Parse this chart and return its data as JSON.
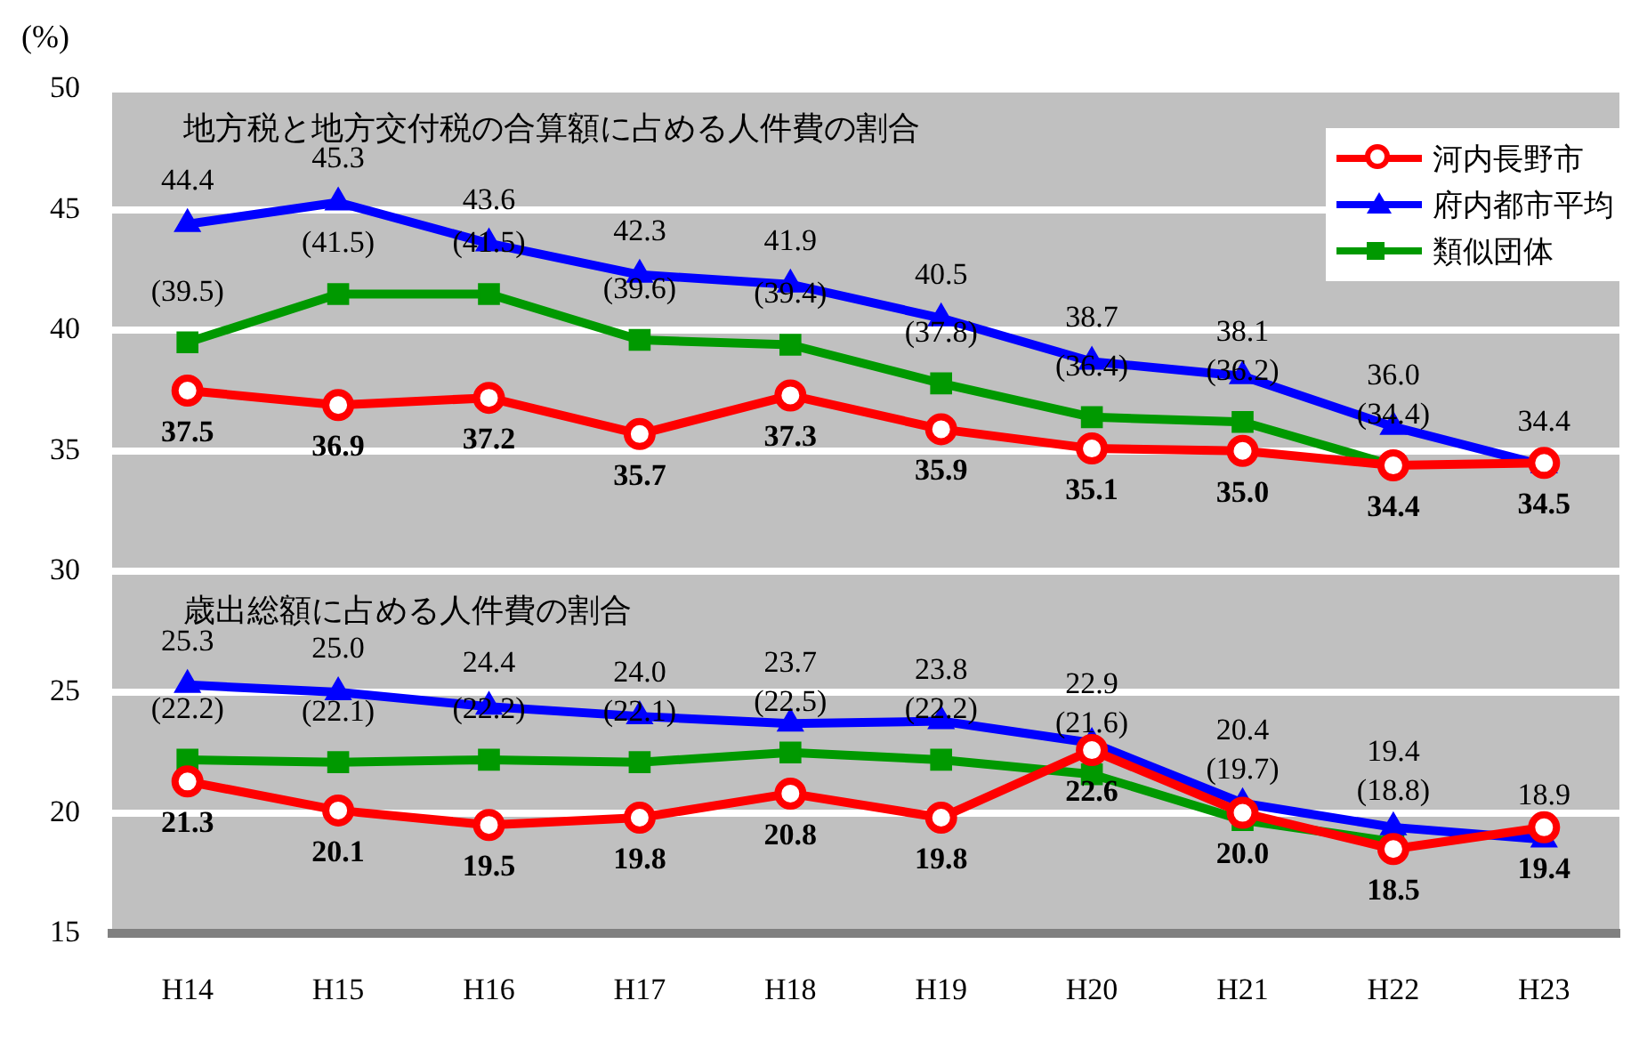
{
  "chart_data": {
    "type": "line",
    "ylabel": "(%)",
    "categories": [
      "H14",
      "H15",
      "H16",
      "H17",
      "H18",
      "H19",
      "H20",
      "H21",
      "H22",
      "H23"
    ],
    "ylim": [
      15,
      50
    ],
    "yticks": [
      15,
      20,
      25,
      30,
      35,
      40,
      45,
      50
    ],
    "grid": "y",
    "legend": "top right",
    "annotations": [
      "地方税と地方交付税の合算額に占める人件費の割合",
      "歳出総額に占める人件費の割合"
    ],
    "series": [
      {
        "name": "河内長野市",
        "color": "#ff0000",
        "marker": "circle",
        "values": [
          37.5,
          36.9,
          37.2,
          35.7,
          37.3,
          35.9,
          35.1,
          35.0,
          34.4,
          34.5
        ],
        "value_labels": [
          "37.5",
          "36.9",
          "37.2",
          "35.7",
          "37.3",
          "35.9",
          "35.1",
          "35.0",
          "34.4",
          "34.5"
        ]
      },
      {
        "name": "府内都市平均",
        "color": "#0000ff",
        "marker": "triangle",
        "values": [
          44.4,
          45.3,
          43.6,
          42.3,
          41.9,
          40.5,
          38.7,
          38.1,
          36.0,
          34.4
        ],
        "value_labels": [
          "44.4",
          "45.3",
          "43.6",
          "42.3",
          "41.9",
          "40.5",
          "38.7",
          "38.1",
          "36.0",
          "34.4"
        ]
      },
      {
        "name": "類似団体",
        "color": "#009900",
        "marker": "square",
        "values": [
          39.5,
          41.5,
          41.5,
          39.6,
          39.4,
          37.8,
          36.4,
          36.2,
          34.4,
          null
        ],
        "value_labels": [
          "(39.5)",
          "(41.5)",
          "(41.5)",
          "(39.6)",
          "(39.4)",
          "(37.8)",
          "(36.4)",
          "(36.2)",
          "(34.4)",
          null
        ]
      },
      {
        "color": "#ff0000",
        "marker": "circle",
        "values": [
          21.3,
          20.1,
          19.5,
          19.8,
          20.8,
          19.8,
          22.6,
          20.0,
          18.5,
          19.4
        ],
        "value_labels": [
          "21.3",
          "20.1",
          "19.5",
          "19.8",
          "20.8",
          "19.8",
          "22.6",
          "20.0",
          "18.5",
          "19.4"
        ]
      },
      {
        "color": "#0000ff",
        "marker": "triangle",
        "values": [
          25.3,
          25.0,
          24.4,
          24.0,
          23.7,
          23.8,
          22.9,
          20.4,
          19.4,
          18.9
        ],
        "value_labels": [
          "25.3",
          "25.0",
          "24.4",
          "24.0",
          "23.7",
          "23.8",
          "22.9",
          "20.4",
          "19.4",
          "18.9"
        ]
      },
      {
        "color": "#009900",
        "marker": "square",
        "values": [
          22.2,
          22.1,
          22.2,
          22.1,
          22.5,
          22.2,
          21.6,
          19.7,
          18.8,
          null
        ],
        "value_labels": [
          "(22.2)",
          "(22.1)",
          "(22.2)",
          "(22.1)",
          "(22.5)",
          "(22.2)",
          "(21.6)",
          "(19.7)",
          "(18.8)",
          null
        ]
      }
    ]
  }
}
